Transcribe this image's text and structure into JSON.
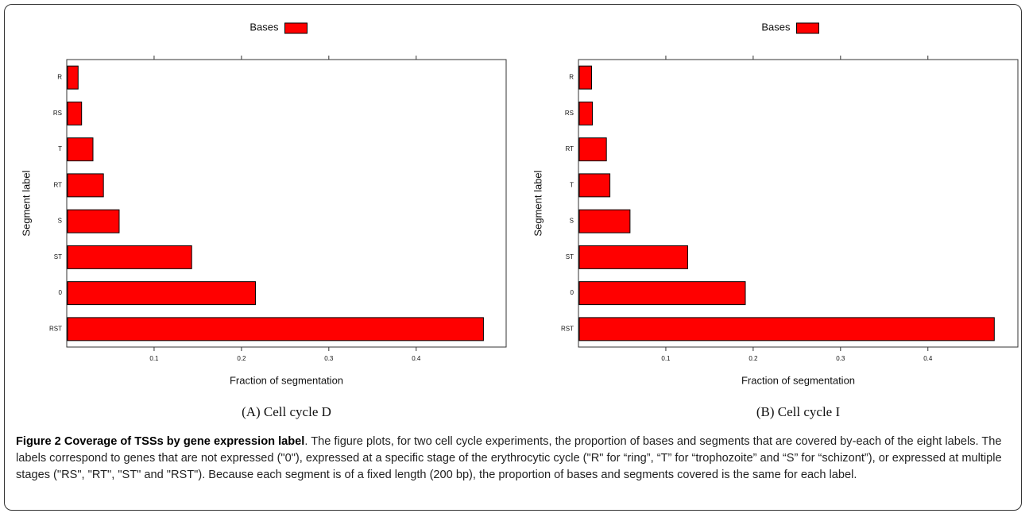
{
  "chart_data": [
    {
      "type": "bar",
      "orientation": "horizontal",
      "legend": "Bases",
      "color": "#ff0000",
      "categories": [
        "R",
        "RS",
        "T",
        "RT",
        "S",
        "ST",
        "0",
        "RST"
      ],
      "values": [
        0.013,
        0.017,
        0.03,
        0.042,
        0.06,
        0.143,
        0.216,
        0.477
      ],
      "xlim": [
        0,
        0.503
      ],
      "xticks": [
        0.1,
        0.2,
        0.3,
        0.4
      ],
      "x_label": "Fraction of segmentation",
      "y_label": "Segment label",
      "caption": "(A) Cell cycle D"
    },
    {
      "type": "bar",
      "orientation": "horizontal",
      "legend": "Bases",
      "color": "#ff0000",
      "categories": [
        "R",
        "RS",
        "RT",
        "T",
        "S",
        "ST",
        "0",
        "RST"
      ],
      "values": [
        0.015,
        0.016,
        0.032,
        0.036,
        0.059,
        0.125,
        0.191,
        0.476
      ],
      "xlim": [
        0,
        0.503
      ],
      "xticks": [
        0.1,
        0.2,
        0.3,
        0.4
      ],
      "x_label": "Fraction of segmentation",
      "y_label": "Segment label",
      "caption": "(B) Cell cycle I"
    }
  ],
  "figure_caption": {
    "title": "Figure 2 Coverage of TSSs by gene expression label",
    "text": ". The figure plots, for two cell cycle experiments, the proportion of bases and segments that are covered by-each of the eight labels. The labels correspond to genes that are not expressed (\"0\"), expressed at a specific stage of the erythrocytic cycle (\"R\" for “ring”, “T” for “trophozoite” and “S” for “schizont”), or expressed at multiple stages (\"RS\", \"RT\", \"ST\" and \"RST\"). Because each segment is of a fixed length (200 bp), the proportion of bases and segments covered is the same for each label."
  }
}
